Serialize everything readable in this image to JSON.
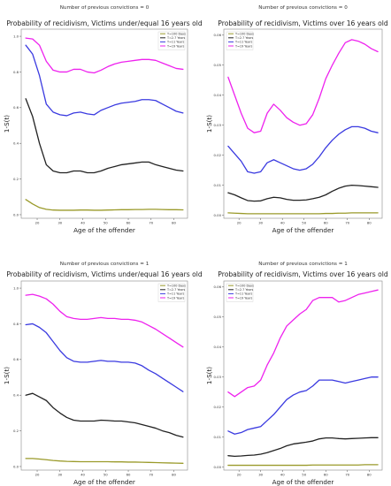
{
  "chart_data": [
    {
      "type": "line",
      "suptitle": "Number of previous convictions = 0",
      "title": "Probability of recidivism, Victims under/equal 16 years old",
      "xlabel": "Age of the offender",
      "ylabel": "1-S(t)",
      "xlim": [
        13,
        86
      ],
      "ylim": [
        -0.02,
        1.04
      ],
      "xticks": [
        20,
        30,
        40,
        50,
        60,
        70,
        80
      ],
      "yticks": [
        0.0,
        0.2,
        0.4,
        0.6,
        0.8,
        1.0
      ],
      "ytick_labels": [
        "0.0",
        "0.2",
        "0.4",
        "0.6",
        "0.8",
        "1.0"
      ],
      "grid": false,
      "legend_position": "top-right",
      "x": [
        15,
        18,
        21,
        24,
        27,
        30,
        33,
        36,
        39,
        42,
        45,
        48,
        51,
        54,
        57,
        60,
        63,
        66,
        69,
        72,
        75,
        78,
        81,
        84
      ],
      "series": [
        {
          "name": "T=100 Days",
          "color": "#9a9a2a",
          "values": [
            0.085,
            0.06,
            0.04,
            0.03,
            0.026,
            0.025,
            0.025,
            0.025,
            0.026,
            0.026,
            0.025,
            0.025,
            0.026,
            0.027,
            0.028,
            0.028,
            0.029,
            0.029,
            0.03,
            0.03,
            0.029,
            0.028,
            0.028,
            0.027
          ]
        },
        {
          "name": "T=2.7 Years",
          "color": "#222222",
          "values": [
            0.65,
            0.55,
            0.4,
            0.28,
            0.245,
            0.235,
            0.235,
            0.245,
            0.245,
            0.235,
            0.235,
            0.245,
            0.26,
            0.27,
            0.28,
            0.285,
            0.29,
            0.295,
            0.295,
            0.28,
            0.27,
            0.26,
            0.25,
            0.245
          ]
        },
        {
          "name": "T=11 Years",
          "color": "#3a3ae0",
          "values": [
            0.95,
            0.9,
            0.78,
            0.62,
            0.575,
            0.56,
            0.555,
            0.57,
            0.575,
            0.565,
            0.56,
            0.585,
            0.6,
            0.615,
            0.625,
            0.63,
            0.635,
            0.645,
            0.645,
            0.64,
            0.62,
            0.6,
            0.58,
            0.57
          ]
        },
        {
          "name": "T=19 Years",
          "color": "#ee22ee",
          "values": [
            0.99,
            0.985,
            0.95,
            0.86,
            0.81,
            0.8,
            0.8,
            0.815,
            0.815,
            0.8,
            0.795,
            0.81,
            0.83,
            0.845,
            0.855,
            0.86,
            0.865,
            0.87,
            0.87,
            0.865,
            0.85,
            0.835,
            0.82,
            0.815
          ]
        }
      ]
    },
    {
      "type": "line",
      "suptitle": "Number of previous convictions = 0",
      "title": "Probability of recidivism, Victims over 16 years old",
      "xlabel": "Age of the offender",
      "ylabel": "1-S(t)",
      "xlim": [
        13,
        86
      ],
      "ylim": [
        -0.001,
        0.062
      ],
      "xticks": [
        20,
        30,
        40,
        50,
        60,
        70,
        80
      ],
      "yticks": [
        0.0,
        0.01,
        0.02,
        0.03,
        0.04,
        0.05,
        0.06
      ],
      "ytick_labels": [
        "0.00",
        "0.01",
        "0.02",
        "0.03",
        "0.04",
        "0.05",
        "0.06"
      ],
      "grid": false,
      "legend_position": "top-left",
      "x": [
        15,
        18,
        21,
        24,
        27,
        30,
        33,
        36,
        39,
        42,
        45,
        48,
        51,
        54,
        57,
        60,
        63,
        66,
        69,
        72,
        75,
        78,
        81,
        84
      ],
      "series": [
        {
          "name": "T=100 Days",
          "color": "#9a9a2a",
          "values": [
            0.0008,
            0.0007,
            0.0006,
            0.0005,
            0.0005,
            0.0005,
            0.0005,
            0.0005,
            0.0005,
            0.0005,
            0.0005,
            0.0005,
            0.0005,
            0.0005,
            0.0005,
            0.0006,
            0.0006,
            0.0007,
            0.0007,
            0.0008,
            0.0008,
            0.0008,
            0.0008,
            0.0008
          ]
        },
        {
          "name": "T=2.7 Years",
          "color": "#222222",
          "values": [
            0.0075,
            0.0068,
            0.0058,
            0.0049,
            0.0047,
            0.0048,
            0.0055,
            0.006,
            0.0058,
            0.0053,
            0.005,
            0.005,
            0.0051,
            0.0055,
            0.006,
            0.0068,
            0.008,
            0.009,
            0.0097,
            0.01,
            0.0099,
            0.0097,
            0.0095,
            0.0093
          ]
        },
        {
          "name": "T=11 Years",
          "color": "#3a3ae0",
          "values": [
            0.023,
            0.0205,
            0.018,
            0.0145,
            0.014,
            0.0145,
            0.0175,
            0.0185,
            0.0175,
            0.0165,
            0.0155,
            0.015,
            0.0155,
            0.017,
            0.0195,
            0.0225,
            0.025,
            0.027,
            0.0285,
            0.0295,
            0.0295,
            0.029,
            0.028,
            0.0275
          ]
        },
        {
          "name": "T=19 Years",
          "color": "#ee22ee",
          "values": [
            0.046,
            0.04,
            0.034,
            0.029,
            0.0275,
            0.028,
            0.034,
            0.037,
            0.035,
            0.0325,
            0.031,
            0.03,
            0.0305,
            0.0335,
            0.039,
            0.0455,
            0.05,
            0.054,
            0.0575,
            0.0585,
            0.058,
            0.057,
            0.0555,
            0.0545
          ]
        }
      ]
    },
    {
      "type": "line",
      "suptitle": "Number of previous convictions = 1",
      "title": "Probability of recidivism, Victims under/equal 16 years old",
      "xlabel": "Age of the offender",
      "ylabel": "1-S(t)",
      "xlim": [
        13,
        86
      ],
      "ylim": [
        -0.02,
        1.04
      ],
      "xticks": [
        20,
        30,
        40,
        50,
        60,
        70,
        80
      ],
      "yticks": [
        0.0,
        0.2,
        0.4,
        0.6,
        0.8,
        1.0
      ],
      "ytick_labels": [
        "0.0",
        "0.2",
        "0.4",
        "0.6",
        "0.8",
        "1.0"
      ],
      "grid": false,
      "legend_position": "top-right",
      "x": [
        15,
        18,
        21,
        24,
        27,
        30,
        33,
        36,
        39,
        42,
        45,
        48,
        51,
        54,
        57,
        60,
        63,
        66,
        69,
        72,
        75,
        78,
        81,
        84
      ],
      "series": [
        {
          "name": "T=100 Days",
          "color": "#9a9a2a",
          "values": [
            0.045,
            0.045,
            0.042,
            0.038,
            0.034,
            0.031,
            0.029,
            0.028,
            0.027,
            0.027,
            0.027,
            0.027,
            0.027,
            0.026,
            0.026,
            0.025,
            0.025,
            0.024,
            0.023,
            0.022,
            0.021,
            0.02,
            0.019,
            0.018
          ]
        },
        {
          "name": "T=2.7 Years",
          "color": "#222222",
          "values": [
            0.4,
            0.41,
            0.39,
            0.37,
            0.33,
            0.3,
            0.275,
            0.26,
            0.255,
            0.255,
            0.255,
            0.26,
            0.258,
            0.255,
            0.255,
            0.25,
            0.245,
            0.235,
            0.225,
            0.215,
            0.2,
            0.19,
            0.175,
            0.165
          ]
        },
        {
          "name": "T=11 Years",
          "color": "#3a3ae0",
          "values": [
            0.795,
            0.8,
            0.78,
            0.75,
            0.7,
            0.65,
            0.61,
            0.59,
            0.585,
            0.585,
            0.59,
            0.595,
            0.59,
            0.59,
            0.585,
            0.585,
            0.58,
            0.565,
            0.54,
            0.52,
            0.495,
            0.47,
            0.445,
            0.42
          ]
        },
        {
          "name": "T=19 Years",
          "color": "#ee22ee",
          "values": [
            0.96,
            0.965,
            0.955,
            0.94,
            0.91,
            0.87,
            0.84,
            0.83,
            0.825,
            0.825,
            0.83,
            0.835,
            0.83,
            0.83,
            0.825,
            0.825,
            0.82,
            0.81,
            0.79,
            0.77,
            0.745,
            0.72,
            0.695,
            0.67
          ]
        }
      ]
    },
    {
      "type": "line",
      "suptitle": "Number of previous convictions = 1",
      "title": "Probability of recidivism, Victims over 16 years old",
      "xlabel": "Age of the offender",
      "ylabel": "1-S(t)",
      "xlim": [
        13,
        86
      ],
      "ylim": [
        -0.001,
        0.062
      ],
      "xticks": [
        20,
        30,
        40,
        50,
        60,
        70,
        80
      ],
      "yticks": [
        0.0,
        0.01,
        0.02,
        0.03,
        0.04,
        0.05,
        0.06
      ],
      "ytick_labels": [
        "0.00",
        "0.01",
        "0.02",
        "0.03",
        "0.04",
        "0.05",
        "0.06"
      ],
      "grid": false,
      "legend_position": "top-left",
      "x": [
        15,
        18,
        21,
        24,
        27,
        30,
        33,
        36,
        39,
        42,
        45,
        48,
        51,
        54,
        57,
        60,
        63,
        66,
        69,
        72,
        75,
        78,
        81,
        84
      ],
      "series": [
        {
          "name": "T=100 Days",
          "color": "#9a9a2a",
          "values": [
            0.0006,
            0.0006,
            0.0006,
            0.0006,
            0.0006,
            0.0006,
            0.0006,
            0.0006,
            0.0006,
            0.0006,
            0.0006,
            0.0006,
            0.0006,
            0.0007,
            0.0007,
            0.0007,
            0.0007,
            0.0007,
            0.0007,
            0.0007,
            0.0007,
            0.0008,
            0.0008,
            0.0008
          ]
        },
        {
          "name": "T=2.7 Years",
          "color": "#222222",
          "values": [
            0.0038,
            0.0036,
            0.0037,
            0.0039,
            0.004,
            0.0043,
            0.0048,
            0.0055,
            0.0062,
            0.0071,
            0.0077,
            0.008,
            0.0083,
            0.0087,
            0.0094,
            0.0097,
            0.0097,
            0.0095,
            0.0094,
            0.0095,
            0.0096,
            0.0097,
            0.0098,
            0.0098
          ]
        },
        {
          "name": "T=11 Years",
          "color": "#3a3ae0",
          "values": [
            0.012,
            0.011,
            0.0115,
            0.0125,
            0.013,
            0.0135,
            0.0155,
            0.0175,
            0.02,
            0.0225,
            0.024,
            0.025,
            0.0255,
            0.027,
            0.029,
            0.029,
            0.029,
            0.0285,
            0.028,
            0.0285,
            0.029,
            0.0295,
            0.03,
            0.03
          ]
        },
        {
          "name": "T=19 Years",
          "color": "#ee22ee",
          "values": [
            0.025,
            0.0235,
            0.025,
            0.0265,
            0.027,
            0.029,
            0.034,
            0.038,
            0.043,
            0.047,
            0.049,
            0.051,
            0.0525,
            0.0555,
            0.0565,
            0.0565,
            0.0565,
            0.055,
            0.0555,
            0.0565,
            0.0575,
            0.058,
            0.0585,
            0.059
          ]
        }
      ]
    }
  ]
}
